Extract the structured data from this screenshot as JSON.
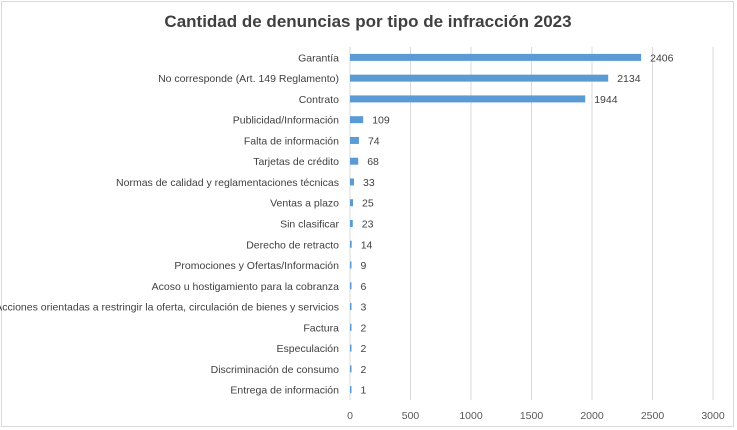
{
  "chart_data": {
    "type": "bar",
    "orientation": "horizontal",
    "title": "Cantidad de denuncias por tipo de infracción 2023",
    "xlabel": "",
    "ylabel": "",
    "xlim": [
      0,
      3000
    ],
    "x_ticks": [
      0,
      500,
      1000,
      1500,
      2000,
      2500,
      3000
    ],
    "grid": true,
    "legend": "none",
    "bar_color": "#5b9bd5",
    "categories": [
      "Garantía",
      "No corresponde (Art. 149 Reglamento)",
      "Contrato",
      "Publicidad/Información",
      "Falta de información",
      "Tarjetas de crédito",
      "Normas de calidad y reglamentaciones técnicas",
      "Ventas a plazo",
      "Sin clasificar",
      "Derecho de retracto",
      "Promociones y Ofertas/Información",
      "Acoso u hostigamiento para la cobranza",
      "Acciones orientadas a restringir la oferta, circulación de bienes y servicios",
      "Factura",
      "Especulación",
      "Discriminación de consumo",
      "Entrega de información"
    ],
    "values": [
      2406,
      2134,
      1944,
      109,
      74,
      68,
      33,
      25,
      23,
      14,
      9,
      6,
      3,
      2,
      2,
      2,
      1
    ]
  }
}
